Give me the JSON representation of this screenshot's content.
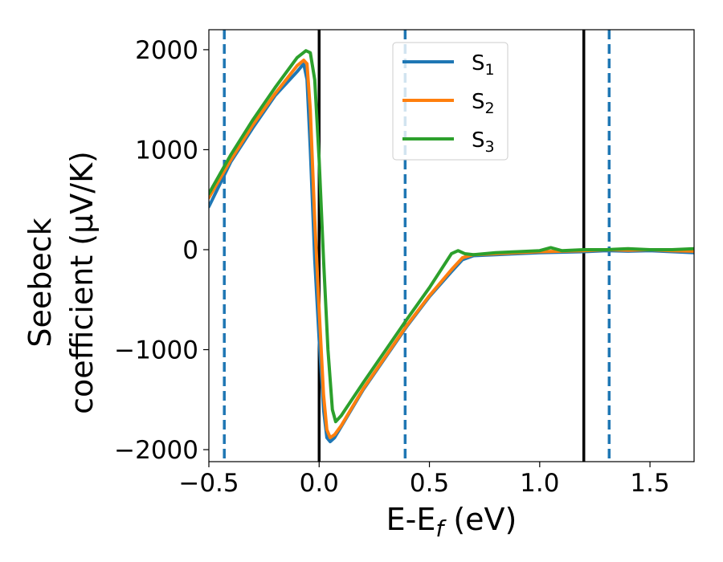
{
  "chart_data": {
    "type": "line",
    "xlabel": {
      "main": "E-E",
      "sub": "f",
      "unit": " (eV)"
    },
    "ylabel": {
      "line1": "Seebeck",
      "line2": "coefficient  (μV/K)"
    },
    "xlim": [
      -0.5,
      1.7
    ],
    "ylim": [
      -2120,
      2200
    ],
    "x_ticks": [
      -0.5,
      0.0,
      0.5,
      1.0,
      1.5
    ],
    "x_tick_labels": [
      "−0.5",
      "0.0",
      "0.5",
      "1.0",
      "1.5"
    ],
    "y_ticks": [
      -2000,
      -1000,
      0,
      1000,
      2000
    ],
    "y_tick_labels": [
      "−2000",
      "−1000",
      "0",
      "1000",
      "2000"
    ],
    "legend": {
      "placement": "upper-center"
    },
    "series": [
      {
        "name": "S1",
        "label_main": "S",
        "label_sub": "1",
        "color": "#1f77b4",
        "x": [
          -0.5,
          -0.4,
          -0.3,
          -0.2,
          -0.1,
          -0.07,
          -0.055,
          -0.04,
          -0.02,
          0.0,
          0.02,
          0.035,
          0.05,
          0.07,
          0.1,
          0.2,
          0.3,
          0.4,
          0.5,
          0.6,
          0.65,
          0.7,
          0.8,
          0.9,
          1.0,
          1.1,
          1.2,
          1.3,
          1.4,
          1.5,
          1.6,
          1.7
        ],
        "y": [
          430,
          880,
          1220,
          1540,
          1780,
          1860,
          1700,
          1000,
          -100,
          -900,
          -1600,
          -1880,
          -1920,
          -1880,
          -1770,
          -1400,
          -1080,
          -760,
          -470,
          -220,
          -100,
          -60,
          -50,
          -40,
          -30,
          -25,
          -20,
          -10,
          -15,
          -10,
          -20,
          -30
        ]
      },
      {
        "name": "S2",
        "label_main": "S",
        "label_sub": "2",
        "color": "#ff7f0e",
        "x": [
          -0.5,
          -0.4,
          -0.3,
          -0.2,
          -0.1,
          -0.07,
          -0.055,
          -0.04,
          -0.02,
          0.0,
          0.02,
          0.035,
          0.05,
          0.07,
          0.1,
          0.2,
          0.3,
          0.4,
          0.5,
          0.6,
          0.65,
          0.7,
          0.8,
          0.9,
          1.0,
          1.1,
          1.2,
          1.3,
          1.4,
          1.5,
          1.6,
          1.7
        ],
        "y": [
          520,
          900,
          1250,
          1560,
          1840,
          1895,
          1860,
          1400,
          300,
          -600,
          -1450,
          -1800,
          -1880,
          -1850,
          -1760,
          -1390,
          -1070,
          -750,
          -460,
          -200,
          -80,
          -50,
          -40,
          -30,
          -20,
          -15,
          -10,
          0,
          -5,
          0,
          -10,
          -15
        ]
      },
      {
        "name": "S3",
        "label_main": "S",
        "label_sub": "3",
        "color": "#2ca02c",
        "x": [
          -0.5,
          -0.4,
          -0.3,
          -0.2,
          -0.1,
          -0.06,
          -0.04,
          -0.02,
          0.0,
          0.02,
          0.04,
          0.06,
          0.075,
          0.1,
          0.2,
          0.3,
          0.4,
          0.5,
          0.6,
          0.63,
          0.66,
          0.7,
          0.8,
          0.9,
          1.0,
          1.05,
          1.1,
          1.2,
          1.3,
          1.4,
          1.5,
          1.6,
          1.7
        ],
        "y": [
          560,
          950,
          1300,
          1620,
          1920,
          1990,
          1970,
          1700,
          900,
          -100,
          -1000,
          -1600,
          -1720,
          -1660,
          -1330,
          -1010,
          -690,
          -380,
          -40,
          -10,
          -40,
          -50,
          -30,
          -20,
          -10,
          20,
          -10,
          0,
          0,
          10,
          0,
          0,
          10
        ]
      }
    ],
    "vertical_lines": [
      {
        "x": -0.43,
        "style": "dashed",
        "color": "#1f77b4"
      },
      {
        "x": 0.0,
        "style": "solid",
        "color": "#000000"
      },
      {
        "x": 0.39,
        "style": "dashed",
        "color": "#1f77b4"
      },
      {
        "x": 1.2,
        "style": "solid",
        "color": "#000000"
      },
      {
        "x": 1.315,
        "style": "dashed",
        "color": "#1f77b4"
      }
    ]
  }
}
